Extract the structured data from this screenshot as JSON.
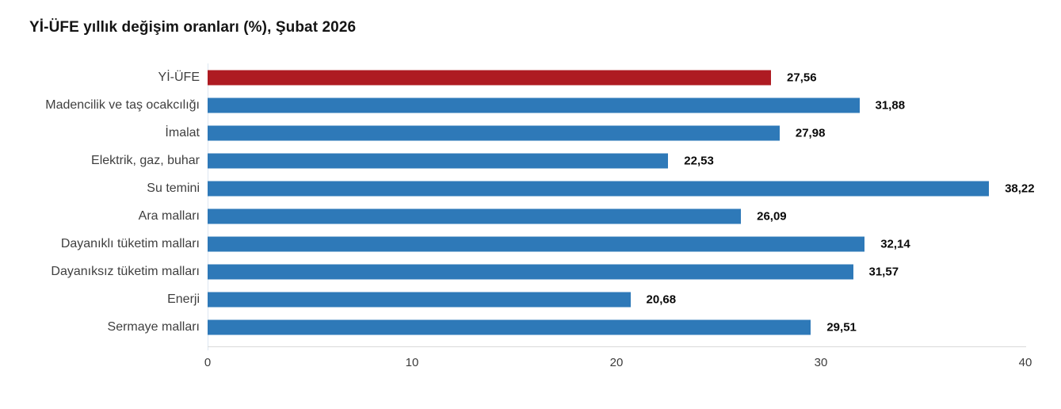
{
  "title": "Yİ-ÜFE yıllık değişim oranları (%), Şubat 2026",
  "chart_data": {
    "type": "bar",
    "orientation": "horizontal",
    "title": "Yİ-ÜFE yıllık değişim oranları (%), Şubat 2026",
    "categories": [
      "Yİ-ÜFE",
      "Madencilik ve taş ocakcılığı",
      "İmalat",
      "Elektrik, gaz, buhar",
      "Su temini",
      "Ara malları",
      "Dayanıklı tüketim malları",
      "Dayanıksız tüketim malları",
      "Enerji",
      "Sermaye malları"
    ],
    "values": [
      27.56,
      31.88,
      27.98,
      22.53,
      38.22,
      26.09,
      32.14,
      31.57,
      20.68,
      29.51
    ],
    "value_labels": [
      "27,56",
      "31,88",
      "27,98",
      "22,53",
      "38,22",
      "26,09",
      "32,14",
      "31,57",
      "20,68",
      "29,51"
    ],
    "highlight_index": 0,
    "colors": {
      "highlight": "#ae1b22",
      "default": "#2e79b8"
    },
    "xlabel": "",
    "ylabel": "",
    "xlim": [
      0,
      40
    ],
    "x_ticks": [
      0,
      10,
      20,
      30,
      40
    ],
    "grid": false,
    "legend": false
  }
}
